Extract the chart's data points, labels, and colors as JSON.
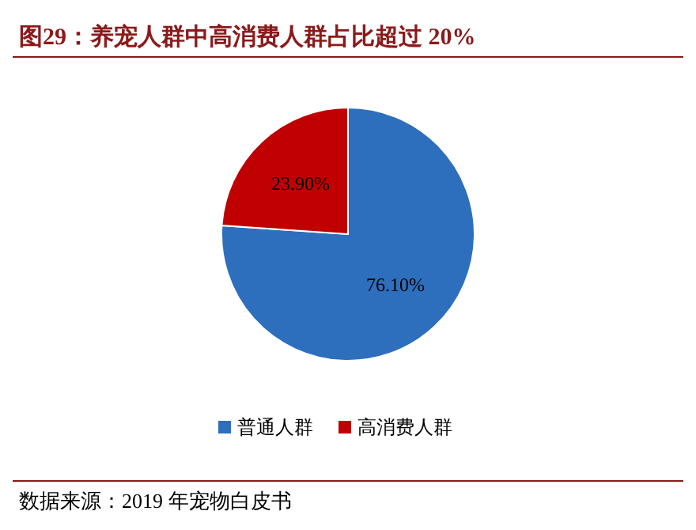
{
  "chart_data": {
    "type": "pie",
    "title": "图29：养宠人群中高消费人群占比超过 20%",
    "categories": [
      "普通人群",
      "高消费人群"
    ],
    "values": [
      76.1,
      23.9
    ],
    "value_labels": [
      "76.10%",
      "23.90%"
    ],
    "colors": [
      "#2e6fbd",
      "#c00000"
    ],
    "legend": "bottom",
    "annotations": [
      "数据来源：2019 年宠物白皮书"
    ]
  }
}
